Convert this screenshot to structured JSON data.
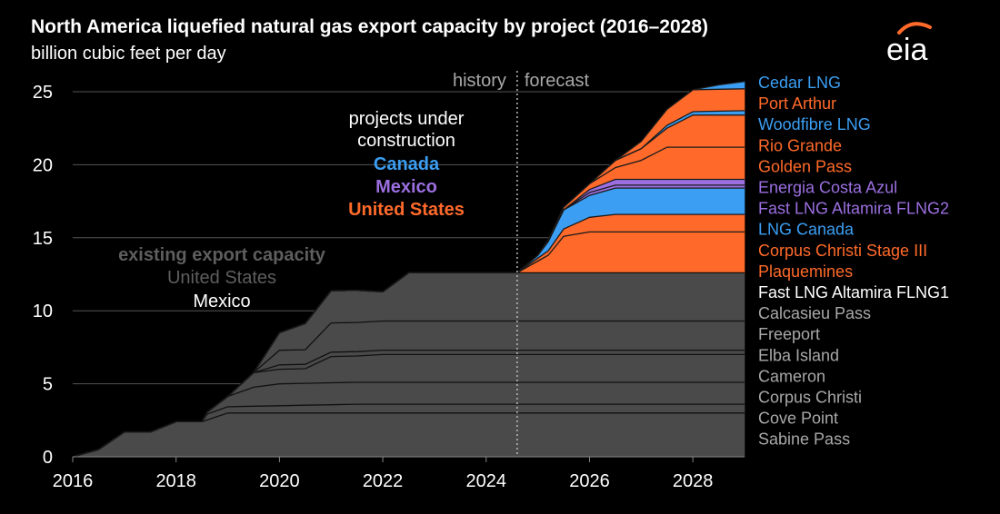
{
  "header": {
    "title": "North America liquefied natural gas export capacity by project (2016–2028)",
    "subtitle": "billion cubic feet per day",
    "logo_text": "eia"
  },
  "colors": {
    "background": "#000000",
    "existing": "#4a4a4a",
    "canada": "#3b9ef2",
    "mexico": "#9b6fe0",
    "united_states": "#ff6a2a",
    "white": "#ffffff",
    "grey_label": "#a8a8a8"
  },
  "chart_data": {
    "type": "area",
    "title": "North America liquefied natural gas export capacity by project (2016–2028)",
    "ylabel": "billion cubic feet per day",
    "xlim": [
      2016,
      2029
    ],
    "ylim": [
      0,
      25
    ],
    "x_ticks": [
      2016,
      2018,
      2020,
      2022,
      2024,
      2026,
      2028
    ],
    "y_ticks": [
      0,
      5,
      10,
      15,
      20,
      25
    ],
    "stacked": true,
    "forecast_start": 2024.6,
    "period_labels": {
      "history": "history",
      "forecast": "forecast"
    },
    "annotations": {
      "under_construction_title": [
        "projects under",
        "construction"
      ],
      "under_construction_canada": "Canada",
      "under_construction_mexico": "Mexico",
      "under_construction_us": "United States",
      "existing_title": "existing export capacity",
      "existing_us": "United States",
      "existing_mexico": "Mexico"
    },
    "series": [
      {
        "name": "Sabine Pass",
        "group": "existing",
        "color_key": "existing",
        "label_color_key": "grey_label",
        "points": [
          [
            2016,
            0
          ],
          [
            2016.5,
            0.5
          ],
          [
            2017,
            1.7
          ],
          [
            2017.5,
            1.7
          ],
          [
            2018,
            2.4
          ],
          [
            2018.5,
            2.4
          ],
          [
            2019,
            3.0
          ],
          [
            2029,
            3.0
          ]
        ]
      },
      {
        "name": "Cove Point",
        "group": "existing",
        "color_key": "existing",
        "label_color_key": "grey_label",
        "points": [
          [
            2016,
            0
          ],
          [
            2018.5,
            0
          ],
          [
            2018.6,
            0.4
          ],
          [
            2021.5,
            0.6
          ],
          [
            2022,
            0.6
          ],
          [
            2029,
            0.6
          ]
        ]
      },
      {
        "name": "Corpus Christi",
        "group": "existing",
        "color_key": "existing",
        "label_color_key": "grey_label",
        "points": [
          [
            2016,
            0
          ],
          [
            2018.5,
            0
          ],
          [
            2019,
            0.7
          ],
          [
            2019.5,
            1.3
          ],
          [
            2020,
            1.5
          ],
          [
            2029,
            1.5
          ]
        ]
      },
      {
        "name": "Cameron",
        "group": "existing",
        "color_key": "existing",
        "label_color_key": "grey_label",
        "points": [
          [
            2016,
            0
          ],
          [
            2019,
            0
          ],
          [
            2019.5,
            1.0
          ],
          [
            2020,
            1.0
          ],
          [
            2020.5,
            1.0
          ],
          [
            2021,
            1.8
          ],
          [
            2021.5,
            1.8
          ],
          [
            2022,
            1.9
          ],
          [
            2029,
            1.9
          ]
        ]
      },
      {
        "name": "Elba Island",
        "group": "existing",
        "color_key": "existing",
        "label_color_key": "grey_label",
        "points": [
          [
            2016,
            0
          ],
          [
            2019.5,
            0
          ],
          [
            2020,
            0.3
          ],
          [
            2029,
            0.3
          ]
        ]
      },
      {
        "name": "Freeport",
        "group": "existing",
        "color_key": "existing",
        "label_color_key": "grey_label",
        "points": [
          [
            2016,
            0
          ],
          [
            2019.5,
            0
          ],
          [
            2020,
            1.0
          ],
          [
            2020.5,
            1.0
          ],
          [
            2021,
            2.0
          ],
          [
            2029,
            2.0
          ]
        ]
      },
      {
        "name": "Calcasieu Pass",
        "group": "existing",
        "color_key": "existing",
        "label_color_key": "grey_label",
        "points": [
          [
            2016,
            0
          ],
          [
            2019.5,
            0
          ],
          [
            2020,
            1.2
          ],
          [
            2020.5,
            1.8
          ],
          [
            2021,
            2.2
          ],
          [
            2021.5,
            2.2
          ],
          [
            2022,
            2.0
          ],
          [
            2022.5,
            3.3
          ],
          [
            2029,
            3.3
          ]
        ]
      },
      {
        "name": "Fast LNG Altamira FLNG1",
        "group": "existing",
        "color_key": "existing",
        "label_color_key": "white",
        "points": [
          [
            2016,
            0
          ],
          [
            2029,
            0
          ]
        ]
      },
      {
        "name": "Plaquemines",
        "group": "us",
        "color_key": "united_states",
        "label_color_key": "united_states",
        "points": [
          [
            2016,
            0
          ],
          [
            2024.6,
            0
          ],
          [
            2025.2,
            1.2
          ],
          [
            2025.5,
            2.5
          ],
          [
            2026,
            2.8
          ],
          [
            2026.5,
            2.8
          ],
          [
            2029,
            2.8
          ]
        ]
      },
      {
        "name": "Corpus Christi Stage III",
        "group": "us",
        "color_key": "united_states",
        "label_color_key": "united_states",
        "points": [
          [
            2016,
            0
          ],
          [
            2024.6,
            0
          ],
          [
            2025.2,
            0.3
          ],
          [
            2025.5,
            0.5
          ],
          [
            2026,
            1.0
          ],
          [
            2026.5,
            1.2
          ],
          [
            2029,
            1.2
          ]
        ]
      },
      {
        "name": "LNG Canada",
        "group": "canada",
        "color_key": "canada",
        "label_color_key": "canada",
        "points": [
          [
            2016,
            0
          ],
          [
            2024.6,
            0
          ],
          [
            2025,
            0.2
          ],
          [
            2025.5,
            1.3
          ],
          [
            2026,
            1.5
          ],
          [
            2026.5,
            1.8
          ],
          [
            2029,
            1.8
          ]
        ]
      },
      {
        "name": "Fast LNG Altamira FLNG2",
        "group": "mexico",
        "color_key": "mexico",
        "label_color_key": "mexico",
        "points": [
          [
            2016,
            0
          ],
          [
            2025.5,
            0
          ],
          [
            2026,
            0.2
          ],
          [
            2026.5,
            0.2
          ],
          [
            2029,
            0.2
          ]
        ]
      },
      {
        "name": "Energia Costa Azul",
        "group": "mexico",
        "color_key": "mexico",
        "label_color_key": "mexico",
        "points": [
          [
            2016,
            0
          ],
          [
            2025.5,
            0
          ],
          [
            2026,
            0.2
          ],
          [
            2026.5,
            0.4
          ],
          [
            2029,
            0.4
          ]
        ]
      },
      {
        "name": "Golden Pass",
        "group": "us",
        "color_key": "united_states",
        "label_color_key": "united_states",
        "points": [
          [
            2016,
            0
          ],
          [
            2025,
            0
          ],
          [
            2026,
            0.4
          ],
          [
            2026.5,
            0.8
          ],
          [
            2027,
            1.3
          ],
          [
            2027.5,
            2.2
          ],
          [
            2029,
            2.2
          ]
        ]
      },
      {
        "name": "Rio Grande",
        "group": "us",
        "color_key": "united_states",
        "label_color_key": "united_states",
        "points": [
          [
            2016,
            0
          ],
          [
            2026,
            0
          ],
          [
            2026.5,
            0.5
          ],
          [
            2027,
            0.8
          ],
          [
            2027.5,
            1.3
          ],
          [
            2028,
            2.2
          ],
          [
            2029,
            2.2
          ]
        ]
      },
      {
        "name": "Woodfibre LNG",
        "group": "canada",
        "color_key": "canada",
        "label_color_key": "canada",
        "points": [
          [
            2016,
            0
          ],
          [
            2027,
            0
          ],
          [
            2027.5,
            0.2
          ],
          [
            2029,
            0.3
          ]
        ]
      },
      {
        "name": "Port Arthur",
        "group": "us",
        "color_key": "united_states",
        "label_color_key": "united_states",
        "points": [
          [
            2016,
            0
          ],
          [
            2026.5,
            0
          ],
          [
            2027,
            0.5
          ],
          [
            2027.5,
            1.1
          ],
          [
            2028,
            1.5
          ],
          [
            2029,
            1.5
          ]
        ]
      },
      {
        "name": "Cedar LNG",
        "group": "canada",
        "color_key": "canada",
        "label_color_key": "canada",
        "points": [
          [
            2016,
            0
          ],
          [
            2028,
            0
          ],
          [
            2028.5,
            0.3
          ],
          [
            2029,
            0.5
          ]
        ]
      }
    ]
  }
}
